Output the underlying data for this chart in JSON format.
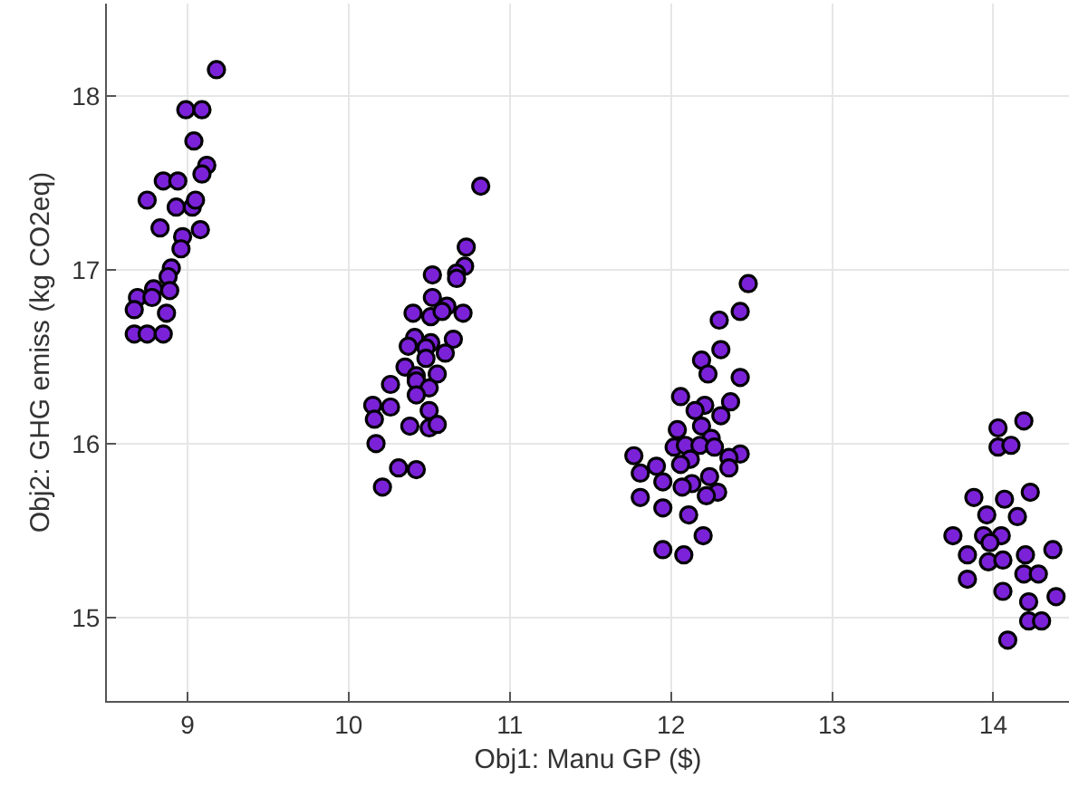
{
  "chart_data": {
    "type": "scatter",
    "xlabel": "Obj1: Manu GP ($)",
    "ylabel": "Obj2: GHG emiss (kg CO2eq)",
    "xlim": [
      8.5,
      14.47
    ],
    "ylim": [
      14.52,
      18.53
    ],
    "xticks": [
      9,
      10,
      11,
      12,
      13,
      14
    ],
    "yticks": [
      15,
      16,
      17,
      18
    ],
    "grid": true,
    "marker": "circle",
    "series": [
      {
        "color": "#7b22d8",
        "x": [
          9.18,
          8.99,
          9.09,
          9.04,
          9.12,
          9.09,
          8.85,
          8.94,
          8.75,
          8.93,
          9.03,
          9.05,
          8.83,
          9.08,
          8.97,
          8.96,
          8.9,
          8.88,
          8.79,
          8.89,
          8.69,
          8.78,
          8.67,
          8.87,
          8.67,
          8.75,
          8.85,
          10.82,
          10.73,
          10.72,
          10.67,
          10.67,
          10.52,
          10.52,
          10.61,
          10.71,
          10.4,
          10.51,
          10.58,
          10.65,
          10.41,
          10.51,
          10.37,
          10.48,
          10.6,
          10.48,
          10.35,
          10.55,
          10.42,
          10.42,
          10.5,
          10.26,
          10.42,
          10.15,
          10.26,
          10.5,
          10.16,
          10.38,
          10.5,
          10.55,
          10.17,
          10.31,
          10.42,
          10.21,
          12.48,
          12.43,
          12.3,
          12.31,
          12.19,
          12.23,
          12.43,
          12.06,
          12.21,
          12.37,
          12.15,
          12.31,
          12.19,
          12.04,
          12.25,
          12.02,
          12.09,
          12.18,
          12.27,
          12.43,
          11.77,
          12.36,
          12.12,
          11.91,
          12.06,
          11.81,
          12.36,
          11.95,
          12.13,
          12.24,
          12.07,
          12.29,
          12.22,
          11.81,
          11.95,
          12.11,
          12.2,
          11.95,
          12.08,
          14.19,
          14.03,
          14.03,
          14.11,
          13.88,
          14.07,
          14.23,
          13.96,
          14.15,
          13.75,
          13.94,
          14.05,
          13.98,
          13.84,
          14.2,
          14.37,
          13.97,
          14.06,
          14.19,
          14.28,
          13.84,
          14.06,
          14.39,
          14.22,
          14.22,
          14.3,
          14.09
        ],
        "values": [
          18.15,
          17.92,
          17.92,
          17.74,
          17.6,
          17.55,
          17.51,
          17.51,
          17.4,
          17.36,
          17.36,
          17.4,
          17.24,
          17.23,
          17.19,
          17.12,
          17.01,
          16.96,
          16.89,
          16.88,
          16.84,
          16.84,
          16.77,
          16.75,
          16.63,
          16.63,
          16.63,
          17.48,
          17.13,
          17.02,
          16.98,
          16.95,
          16.97,
          16.84,
          16.79,
          16.75,
          16.75,
          16.73,
          16.76,
          16.6,
          16.61,
          16.58,
          16.56,
          16.55,
          16.52,
          16.49,
          16.44,
          16.4,
          16.39,
          16.36,
          16.32,
          16.34,
          16.28,
          16.22,
          16.21,
          16.19,
          16.14,
          16.1,
          16.09,
          16.11,
          16.0,
          15.86,
          15.85,
          15.75,
          16.92,
          16.76,
          16.71,
          16.54,
          16.48,
          16.4,
          16.38,
          16.27,
          16.22,
          16.24,
          16.19,
          16.16,
          16.1,
          16.08,
          16.03,
          15.98,
          15.99,
          15.99,
          15.98,
          15.94,
          15.93,
          15.92,
          15.91,
          15.87,
          15.88,
          15.83,
          15.86,
          15.78,
          15.77,
          15.81,
          15.75,
          15.72,
          15.7,
          15.69,
          15.63,
          15.59,
          15.47,
          15.39,
          15.36,
          16.13,
          16.09,
          15.98,
          15.99,
          15.69,
          15.68,
          15.72,
          15.59,
          15.58,
          15.47,
          15.47,
          15.47,
          15.43,
          15.36,
          15.36,
          15.39,
          15.32,
          15.33,
          15.25,
          15.25,
          15.22,
          15.15,
          15.12,
          15.09,
          14.98,
          14.98,
          14.87
        ]
      }
    ]
  }
}
